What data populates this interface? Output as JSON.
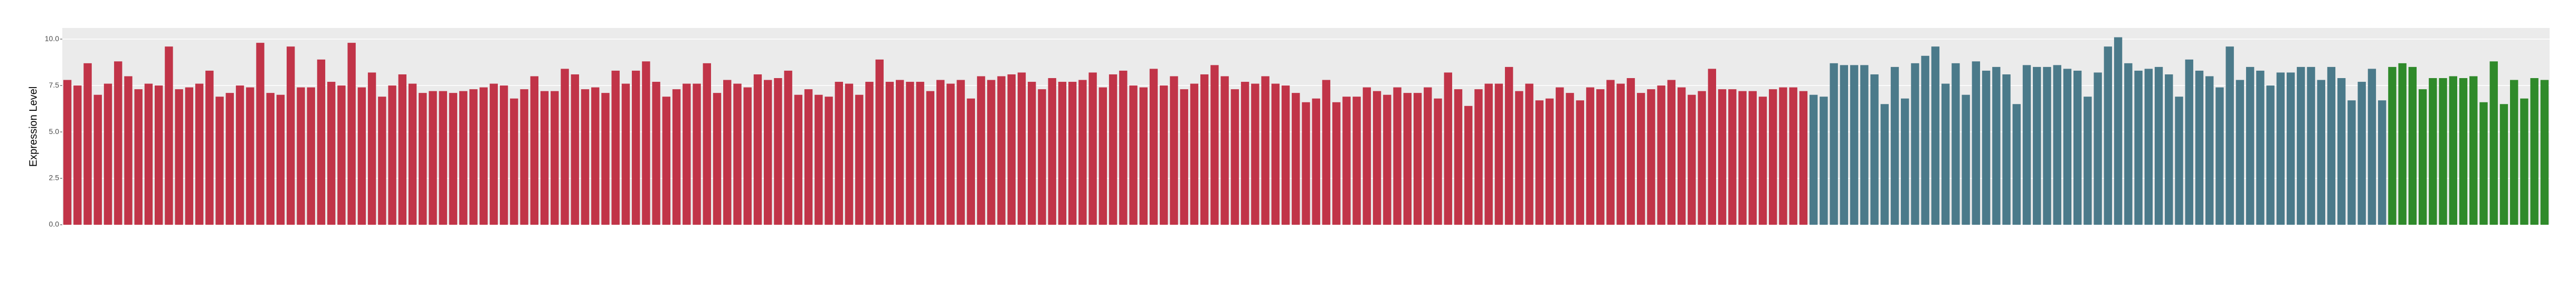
{
  "chart_data": {
    "type": "bar",
    "y_label": "Expression Level",
    "categories": [
      null,
      null,
      null,
      null,
      null,
      null,
      null,
      null,
      null,
      null,
      null,
      null,
      null,
      null,
      null,
      null,
      null,
      null,
      null,
      null,
      null,
      null,
      null,
      null,
      null,
      null,
      null,
      null,
      null,
      null,
      null,
      null,
      null,
      null,
      null,
      null,
      null,
      null,
      null,
      null,
      null,
      null,
      null,
      null,
      null,
      null,
      null,
      null,
      null,
      null,
      null,
      null,
      null,
      null,
      null,
      null,
      null,
      null,
      null,
      null,
      null,
      null,
      null,
      null,
      null,
      null,
      null,
      null,
      null,
      null,
      null,
      null,
      null,
      null,
      null,
      null,
      null,
      null,
      null,
      null,
      null,
      null,
      null,
      null,
      null,
      null,
      null,
      null,
      null,
      null,
      null,
      null,
      null,
      null,
      null,
      null,
      null,
      null,
      null,
      null,
      null,
      null,
      null,
      null,
      null,
      null,
      null,
      null,
      null,
      null,
      null,
      null,
      null,
      null,
      null,
      null,
      null,
      null,
      null,
      null,
      null,
      null,
      null,
      null,
      null,
      null,
      null,
      null,
      null,
      null,
      null,
      null,
      null,
      null,
      null,
      null,
      null,
      null,
      null,
      null,
      null,
      null,
      null,
      null,
      null,
      null,
      null,
      null,
      null,
      null,
      null,
      null,
      null,
      null,
      null,
      null,
      null,
      null,
      null,
      null,
      null,
      null,
      null,
      null,
      null,
      null,
      null,
      null,
      null,
      null,
      null,
      null,
      null,
      null,
      null,
      null,
      null,
      null,
      null,
      null,
      null,
      null,
      null,
      null,
      null,
      null,
      null,
      null,
      null,
      null,
      null,
      null,
      null,
      null,
      null,
      null,
      null,
      null,
      null,
      null,
      null,
      null,
      null,
      null,
      null,
      null,
      null,
      null,
      null,
      null,
      null,
      null,
      null,
      null,
      null,
      null,
      null,
      null,
      null,
      null,
      null,
      null,
      null,
      null,
      null,
      null,
      null,
      null,
      null,
      null,
      null,
      null,
      null,
      null,
      null,
      null,
      null,
      null,
      null,
      null,
      null,
      null,
      null,
      null,
      null
    ],
    "values": [
      7.8,
      7.5,
      8.7,
      7.0,
      7.6,
      8.8,
      8.0,
      7.3,
      7.6,
      7.5,
      9.6,
      7.3,
      7.4,
      7.6,
      8.3,
      6.9,
      7.1,
      7.5,
      7.4,
      9.8,
      7.1,
      7.0,
      9.6,
      7.4,
      7.4,
      8.9,
      7.7,
      7.5,
      9.8,
      7.4,
      8.2,
      6.9,
      7.5,
      8.1,
      7.6,
      7.1,
      7.2,
      7.2,
      7.1,
      7.2,
      7.3,
      7.4,
      7.6,
      7.5,
      6.8,
      7.3,
      8.0,
      7.2,
      7.2,
      8.4,
      8.1,
      7.3,
      7.4,
      7.1,
      8.3,
      7.6,
      8.3,
      8.8,
      7.7,
      6.9,
      7.3,
      7.6,
      7.6,
      8.7,
      7.1,
      7.8,
      7.6,
      7.4,
      8.1,
      7.8,
      7.9,
      8.3,
      7.0,
      7.3,
      7.0,
      6.9,
      7.7,
      7.6,
      7.0,
      7.7,
      8.9,
      7.7,
      7.8,
      7.7,
      7.7,
      7.2,
      7.8,
      7.6,
      7.8,
      6.8,
      8.0,
      7.8,
      8.0,
      8.1,
      8.2,
      7.7,
      7.3,
      7.9,
      7.7,
      7.7,
      7.8,
      8.2,
      7.4,
      8.1,
      8.3,
      7.5,
      7.4,
      8.4,
      7.5,
      8.0,
      7.3,
      7.6,
      8.1,
      8.6,
      8.0,
      7.3,
      7.7,
      7.6,
      8.0,
      7.6,
      7.5,
      7.1,
      6.6,
      6.8,
      7.8,
      6.6,
      6.9,
      6.9,
      7.4,
      7.2,
      7.0,
      7.4,
      7.1,
      7.1,
      7.4,
      6.8,
      8.2,
      7.3,
      6.4,
      7.3,
      7.6,
      7.6,
      8.5,
      7.2,
      7.6,
      6.7,
      6.8,
      7.4,
      7.1,
      6.7,
      7.4,
      7.3,
      7.8,
      7.6,
      7.9,
      7.1,
      7.3,
      7.5,
      7.8,
      7.4,
      7.0,
      7.2,
      8.4,
      7.3,
      7.3,
      7.2,
      7.2,
      6.9,
      7.3,
      7.4,
      7.4,
      7.2,
      7.0,
      6.9,
      8.7,
      8.6,
      8.6,
      8.6,
      8.1,
      6.5,
      8.5,
      6.8,
      8.7,
      9.1,
      9.6,
      7.6,
      8.7,
      7.0,
      8.8,
      8.3,
      8.5,
      8.1,
      6.5,
      8.6,
      8.5,
      8.5,
      8.6,
      8.4,
      8.3,
      6.9,
      8.2,
      9.6,
      10.1,
      8.7,
      8.3,
      8.4,
      8.5,
      8.1,
      6.9,
      8.9,
      8.3,
      8.0,
      7.4,
      9.6,
      7.8,
      8.5,
      8.3,
      7.5,
      8.2,
      8.2,
      8.5,
      8.5,
      7.8,
      8.5,
      7.9,
      6.7,
      7.7,
      8.4,
      6.7,
      8.5,
      8.7,
      8.5,
      7.3,
      7.9,
      7.9,
      8.0,
      7.9,
      8.0,
      6.6,
      8.8,
      6.5,
      7.8,
      6.8,
      7.9,
      7.8
    ],
    "colors": [
      "#c13448",
      "#c13448",
      "#c13448",
      "#c13448",
      "#c13448",
      "#c13448",
      "#c13448",
      "#c13448",
      "#c13448",
      "#c13448",
      "#c13448",
      "#c13448",
      "#c13448",
      "#c13448",
      "#c13448",
      "#c13448",
      "#c13448",
      "#c13448",
      "#c13448",
      "#c13448",
      "#c13448",
      "#c13448",
      "#c13448",
      "#c13448",
      "#c13448",
      "#c13448",
      "#c13448",
      "#c13448",
      "#c13448",
      "#c13448",
      "#c13448",
      "#c13448",
      "#c13448",
      "#c13448",
      "#c13448",
      "#c13448",
      "#c13448",
      "#c13448",
      "#c13448",
      "#c13448",
      "#c13448",
      "#c13448",
      "#c13448",
      "#c13448",
      "#c13448",
      "#c13448",
      "#c13448",
      "#c13448",
      "#c13448",
      "#c13448",
      "#c13448",
      "#c13448",
      "#c13448",
      "#c13448",
      "#c13448",
      "#c13448",
      "#c13448",
      "#c13448",
      "#c13448",
      "#c13448",
      "#c13448",
      "#c13448",
      "#c13448",
      "#c13448",
      "#c13448",
      "#c13448",
      "#c13448",
      "#c13448",
      "#c13448",
      "#c13448",
      "#c13448",
      "#c13448",
      "#c13448",
      "#c13448",
      "#c13448",
      "#c13448",
      "#c13448",
      "#c13448",
      "#c13448",
      "#c13448",
      "#c13448",
      "#c13448",
      "#c13448",
      "#c13448",
      "#c13448",
      "#c13448",
      "#c13448",
      "#c13448",
      "#c13448",
      "#c13448",
      "#c13448",
      "#c13448",
      "#c13448",
      "#c13448",
      "#c13448",
      "#c13448",
      "#c13448",
      "#c13448",
      "#c13448",
      "#c13448",
      "#c13448",
      "#c13448",
      "#c13448",
      "#c13448",
      "#c13448",
      "#c13448",
      "#c13448",
      "#c13448",
      "#c13448",
      "#c13448",
      "#c13448",
      "#c13448",
      "#c13448",
      "#c13448",
      "#c13448",
      "#c13448",
      "#c13448",
      "#c13448",
      "#c13448",
      "#c13448",
      "#c13448",
      "#c13448",
      "#c13448",
      "#c13448",
      "#c13448",
      "#c13448",
      "#c13448",
      "#c13448",
      "#c13448",
      "#c13448",
      "#c13448",
      "#c13448",
      "#c13448",
      "#c13448",
      "#c13448",
      "#c13448",
      "#c13448",
      "#c13448",
      "#c13448",
      "#c13448",
      "#c13448",
      "#c13448",
      "#c13448",
      "#c13448",
      "#c13448",
      "#c13448",
      "#c13448",
      "#c13448",
      "#c13448",
      "#c13448",
      "#c13448",
      "#c13448",
      "#c13448",
      "#c13448",
      "#c13448",
      "#c13448",
      "#c13448",
      "#c13448",
      "#c13448",
      "#c13448",
      "#c13448",
      "#c13448",
      "#c13448",
      "#c13448",
      "#c13448",
      "#c13448",
      "#c13448",
      "#c13448",
      "#c13448",
      "#c13448",
      "#c13448",
      "#c13448",
      "#4b7a8a",
      "#4b7a8a",
      "#4b7a8a",
      "#4b7a8a",
      "#4b7a8a",
      "#4b7a8a",
      "#4b7a8a",
      "#4b7a8a",
      "#4b7a8a",
      "#4b7a8a",
      "#4b7a8a",
      "#4b7a8a",
      "#4b7a8a",
      "#4b7a8a",
      "#4b7a8a",
      "#4b7a8a",
      "#4b7a8a",
      "#4b7a8a",
      "#4b7a8a",
      "#4b7a8a",
      "#4b7a8a",
      "#4b7a8a",
      "#4b7a8a",
      "#4b7a8a",
      "#4b7a8a",
      "#4b7a8a",
      "#4b7a8a",
      "#4b7a8a",
      "#4b7a8a",
      "#4b7a8a",
      "#4b7a8a",
      "#4b7a8a",
      "#4b7a8a",
      "#4b7a8a",
      "#4b7a8a",
      "#4b7a8a",
      "#4b7a8a",
      "#4b7a8a",
      "#4b7a8a",
      "#4b7a8a",
      "#4b7a8a",
      "#4b7a8a",
      "#4b7a8a",
      "#4b7a8a",
      "#4b7a8a",
      "#4b7a8a",
      "#4b7a8a",
      "#4b7a8a",
      "#4b7a8a",
      "#4b7a8a",
      "#4b7a8a",
      "#4b7a8a",
      "#4b7a8a",
      "#4b7a8a",
      "#4b7a8a",
      "#4b7a8a",
      "#4b7a8a",
      "#2f8a2a",
      "#2f8a2a",
      "#2f8a2a",
      "#2f8a2a",
      "#2f8a2a",
      "#2f8a2a",
      "#2f8a2a",
      "#2f8a2a",
      "#2f8a2a",
      "#2f8a2a",
      "#2f8a2a",
      "#2f8a2a",
      "#2f8a2a",
      "#2f8a2a",
      "#2f8a2a",
      "#2f8a2a"
    ],
    "ylim": [
      0,
      10.6
    ],
    "yticks": [
      {
        "value": 0,
        "label": "0.0"
      },
      {
        "value": 2.5,
        "label": "2.5"
      },
      {
        "value": 5,
        "label": "5.0"
      },
      {
        "value": 7.5,
        "label": "7.5"
      },
      {
        "value": 10,
        "label": "10.0"
      }
    ],
    "grid": true
  }
}
